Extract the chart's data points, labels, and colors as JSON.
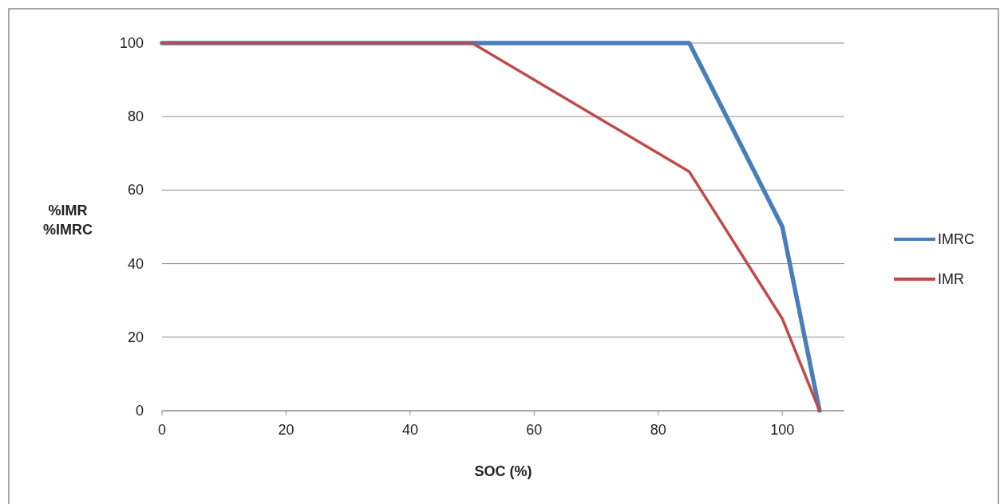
{
  "chart_data": {
    "type": "line",
    "xlabel": "SOC (%)",
    "ylabel": "%IMR\n%IMRC",
    "xlim": [
      0,
      110
    ],
    "xticks": [
      0,
      20,
      40,
      60,
      80,
      100
    ],
    "ylim": [
      0,
      100
    ],
    "yticks": [
      0,
      20,
      40,
      60,
      80,
      100
    ],
    "grid": "y",
    "legend": "right",
    "marker": "none",
    "line_style": "solid",
    "series": [
      {
        "name": "IMRC",
        "color": "#4a7ebb",
        "x": [
          0,
          85,
          100,
          106
        ],
        "values": [
          100,
          100,
          50,
          0
        ]
      },
      {
        "name": "IMR",
        "color": "#be4b48",
        "x": [
          0,
          50,
          85,
          100,
          106
        ],
        "values": [
          100,
          100,
          65,
          25,
          0
        ]
      }
    ]
  }
}
